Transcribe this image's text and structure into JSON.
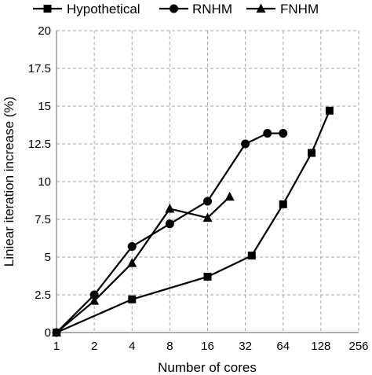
{
  "chart_data": {
    "type": "line",
    "xlabel": "Number of cores",
    "ylabel": "Liniear iteration increase (%)",
    "x_scale": "log2",
    "xlim": [
      1,
      256
    ],
    "ylim": [
      0,
      20
    ],
    "x_ticks": [
      1,
      2,
      4,
      8,
      16,
      32,
      64,
      128,
      256
    ],
    "x_tick_labels": [
      "1",
      "2",
      "4",
      "8",
      "16",
      "32",
      "64",
      "128",
      "256"
    ],
    "y_ticks": [
      0,
      2.5,
      5,
      7.5,
      10,
      12.5,
      15,
      17.5,
      20
    ],
    "y_tick_labels": [
      "0",
      "2.5",
      "5",
      "7.5",
      "10",
      "12.5",
      "15",
      "17.5",
      "20"
    ],
    "grid": true,
    "legend_position": "top",
    "series": [
      {
        "name": "Hypothetical",
        "marker": "square",
        "x": [
          1,
          4,
          16,
          36,
          64,
          108,
          150
        ],
        "y": [
          0,
          2.2,
          3.7,
          5.1,
          8.5,
          11.9,
          14.7
        ]
      },
      {
        "name": "RNHM",
        "marker": "circle",
        "x": [
          1,
          2,
          4,
          8,
          16,
          32,
          48,
          64
        ],
        "y": [
          0,
          2.5,
          5.7,
          7.2,
          8.7,
          12.5,
          13.2,
          13.2
        ]
      },
      {
        "name": "FNHM",
        "marker": "triangle",
        "x": [
          1,
          2,
          4,
          8,
          16,
          24
        ],
        "y": [
          0,
          2.1,
          4.6,
          8.2,
          7.6,
          9.0
        ]
      }
    ]
  }
}
